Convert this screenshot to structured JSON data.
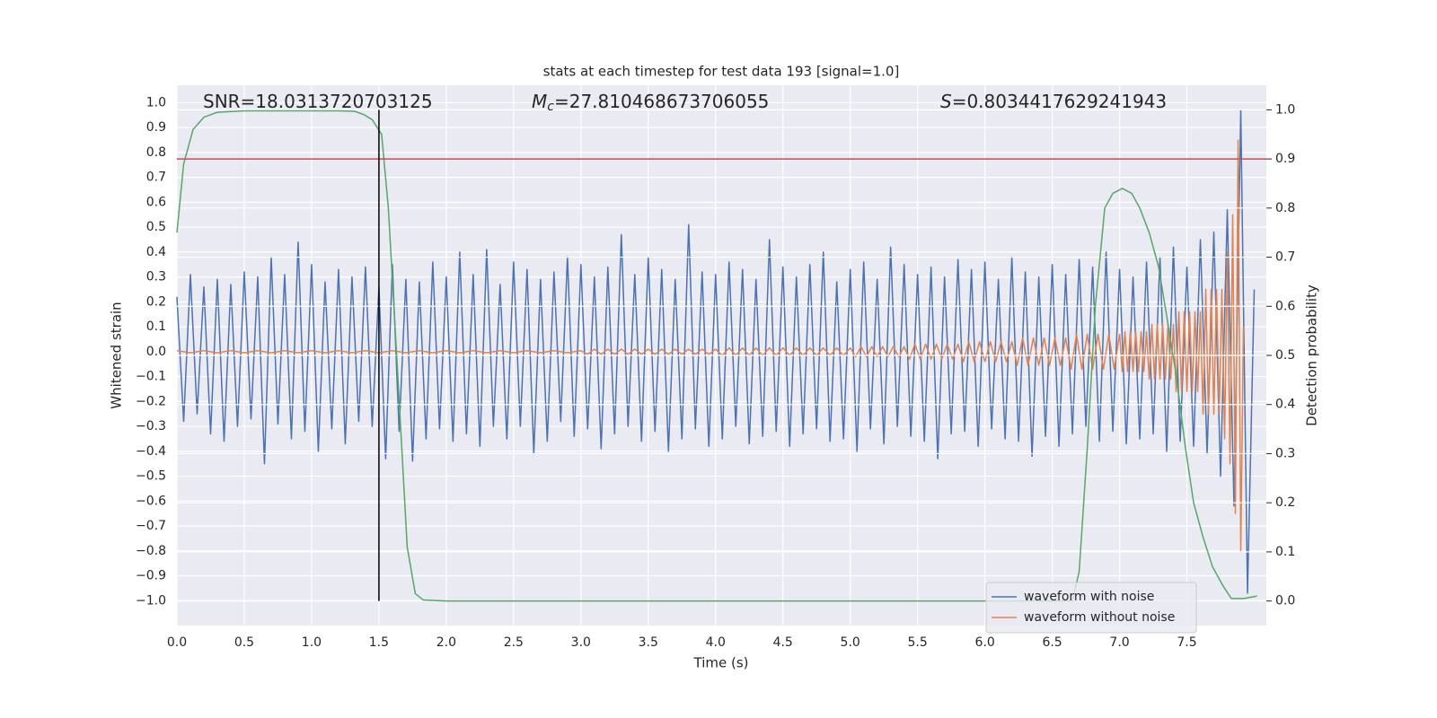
{
  "chart_data": {
    "type": "line",
    "title": "stats at each timestep for test data 193 [signal=1.0]",
    "xlabel": "Time (s)",
    "ylabel": "Whitened strain",
    "y2label": "Detection probability",
    "annotations": [
      {
        "text": "SNR=18.0313720703125"
      },
      {
        "symbol": "M",
        "subscript": "c",
        "text": "=27.810468673706055"
      },
      {
        "symbol": "S",
        "text": "=0.8034417629241943"
      }
    ],
    "xlim": [
      0,
      8.09
    ],
    "ylim": [
      -1.1,
      1.07
    ],
    "y2lim": [
      -0.05,
      1.05
    ],
    "xticks": [
      {
        "value": 0,
        "label": "0.0"
      },
      {
        "value": 0.5,
        "label": "0.5"
      },
      {
        "value": 1,
        "label": "1.0"
      },
      {
        "value": 1.5,
        "label": "1.5"
      },
      {
        "value": 2,
        "label": "2.0"
      },
      {
        "value": 2.5,
        "label": "2.5"
      },
      {
        "value": 3,
        "label": "3.0"
      },
      {
        "value": 3.5,
        "label": "3.5"
      },
      {
        "value": 4,
        "label": "4.0"
      },
      {
        "value": 4.5,
        "label": "4.5"
      },
      {
        "value": 5,
        "label": "5.0"
      },
      {
        "value": 5.5,
        "label": "5.5"
      },
      {
        "value": 6,
        "label": "6.0"
      },
      {
        "value": 6.5,
        "label": "6.5"
      },
      {
        "value": 7,
        "label": "7.0"
      },
      {
        "value": 7.5,
        "label": "7.5"
      }
    ],
    "yticks": [
      {
        "value": -1,
        "label": "−1.0"
      },
      {
        "value": -0.9,
        "label": "−0.9"
      },
      {
        "value": -0.8,
        "label": "−0.8"
      },
      {
        "value": -0.7,
        "label": "−0.7"
      },
      {
        "value": -0.6,
        "label": "−0.6"
      },
      {
        "value": -0.5,
        "label": "−0.5"
      },
      {
        "value": -0.4,
        "label": "−0.4"
      },
      {
        "value": -0.3,
        "label": "−0.3"
      },
      {
        "value": -0.2,
        "label": "−0.2"
      },
      {
        "value": -0.1,
        "label": "−0.1"
      },
      {
        "value": 0,
        "label": "0.0"
      },
      {
        "value": 0.1,
        "label": "0.1"
      },
      {
        "value": 0.2,
        "label": "0.2"
      },
      {
        "value": 0.3,
        "label": "0.3"
      },
      {
        "value": 0.4,
        "label": "0.4"
      },
      {
        "value": 0.5,
        "label": "0.5"
      },
      {
        "value": 0.6,
        "label": "0.6"
      },
      {
        "value": 0.7,
        "label": "0.7"
      },
      {
        "value": 0.8,
        "label": "0.8"
      },
      {
        "value": 0.9,
        "label": "0.9"
      },
      {
        "value": 1,
        "label": "1.0"
      }
    ],
    "y2ticks": [
      {
        "value": 0,
        "label": "0.0"
      },
      {
        "value": 0.1,
        "label": "0.1"
      },
      {
        "value": 0.2,
        "label": "0.2"
      },
      {
        "value": 0.3,
        "label": "0.3"
      },
      {
        "value": 0.4,
        "label": "0.4"
      },
      {
        "value": 0.5,
        "label": "0.5"
      },
      {
        "value": 0.6,
        "label": "0.6"
      },
      {
        "value": 0.7,
        "label": "0.7"
      },
      {
        "value": 0.8,
        "label": "0.8"
      },
      {
        "value": 0.9,
        "label": "0.9"
      },
      {
        "value": 1,
        "label": "1.0"
      }
    ],
    "grid": true,
    "legend": "lower right",
    "series": [
      {
        "name": "waveform with noise",
        "color": "#4c72b0",
        "x": [
          0,
          0.05,
          0.1,
          0.15,
          0.2,
          0.25,
          0.3,
          0.35,
          0.4,
          0.45,
          0.5,
          0.55,
          0.6,
          0.65,
          0.7,
          0.75,
          0.8,
          0.85,
          0.9,
          0.95,
          1,
          1.05,
          1.1,
          1.15,
          1.2,
          1.25,
          1.3,
          1.35,
          1.4,
          1.45,
          1.5,
          1.55,
          1.6,
          1.65,
          1.7,
          1.75,
          1.8,
          1.85,
          1.9,
          1.95,
          2,
          2.05,
          2.1,
          2.15,
          2.2,
          2.25,
          2.3,
          2.35,
          2.4,
          2.45,
          2.5,
          2.55,
          2.6,
          2.65,
          2.7,
          2.75,
          2.8,
          2.85,
          2.9,
          2.95,
          3,
          3.05,
          3.1,
          3.15,
          3.2,
          3.25,
          3.3,
          3.35,
          3.4,
          3.45,
          3.5,
          3.55,
          3.6,
          3.65,
          3.7,
          3.75,
          3.8,
          3.85,
          3.9,
          3.95,
          4,
          4.05,
          4.1,
          4.15,
          4.2,
          4.25,
          4.3,
          4.35,
          4.4,
          4.45,
          4.5,
          4.55,
          4.6,
          4.65,
          4.7,
          4.75,
          4.8,
          4.85,
          4.9,
          4.95,
          5,
          5.05,
          5.1,
          5.15,
          5.2,
          5.25,
          5.3,
          5.35,
          5.4,
          5.45,
          5.5,
          5.55,
          5.6,
          5.65,
          5.7,
          5.75,
          5.8,
          5.85,
          5.9,
          5.95,
          6,
          6.05,
          6.1,
          6.15,
          6.2,
          6.25,
          6.3,
          6.35,
          6.4,
          6.45,
          6.5,
          6.55,
          6.6,
          6.65,
          6.7,
          6.75,
          6.8,
          6.85,
          6.9,
          6.95,
          7,
          7.05,
          7.1,
          7.15,
          7.2,
          7.25,
          7.3,
          7.35,
          7.4,
          7.45,
          7.5,
          7.55,
          7.6,
          7.65,
          7.7,
          7.75,
          7.8,
          7.85,
          7.9,
          7.95,
          8
        ],
        "values": [
          0.22,
          -0.28,
          0.31,
          -0.25,
          0.26,
          -0.33,
          0.29,
          -0.36,
          0.27,
          -0.3,
          0.32,
          -0.27,
          0.3,
          -0.45,
          0.38,
          -0.29,
          0.31,
          -0.35,
          0.44,
          -0.32,
          0.35,
          -0.4,
          0.28,
          -0.31,
          0.33,
          -0.37,
          0.3,
          -0.28,
          0.34,
          -0.3,
          0.26,
          -0.43,
          0.35,
          -0.32,
          0.29,
          -0.44,
          0.28,
          -0.35,
          0.36,
          -0.31,
          0.3,
          -0.36,
          0.4,
          -0.33,
          0.31,
          -0.38,
          0.41,
          -0.3,
          0.27,
          -0.35,
          0.36,
          -0.3,
          0.33,
          -0.41,
          0.29,
          -0.36,
          0.32,
          -0.28,
          0.38,
          -0.34,
          0.35,
          -0.31,
          0.3,
          -0.39,
          0.34,
          -0.33,
          0.47,
          -0.3,
          0.31,
          -0.36,
          0.38,
          -0.32,
          0.33,
          -0.4,
          0.29,
          -0.35,
          0.51,
          -0.31,
          0.32,
          -0.38,
          0.31,
          -0.35,
          0.36,
          -0.3,
          0.33,
          -0.37,
          0.29,
          -0.34,
          0.45,
          -0.32,
          0.34,
          -0.38,
          0.3,
          -0.33,
          0.35,
          -0.31,
          0.4,
          -0.36,
          0.28,
          -0.35,
          0.33,
          -0.4,
          0.36,
          -0.31,
          0.29,
          -0.37,
          0.42,
          -0.3,
          0.35,
          -0.34,
          0.31,
          -0.36,
          0.34,
          -0.43,
          0.3,
          -0.33,
          0.37,
          -0.32,
          0.33,
          -0.38,
          0.36,
          -0.31,
          0.29,
          -0.35,
          0.38,
          -0.36,
          0.32,
          -0.42,
          0.3,
          -0.34,
          0.35,
          -0.38,
          0.31,
          -0.33,
          0.37,
          -0.3,
          0.34,
          -0.36,
          0.4,
          -0.32,
          0.33,
          -0.37,
          0.3,
          -0.35,
          0.36,
          -0.33,
          0.38,
          -0.4,
          0.42,
          -0.36,
          0.34,
          -0.38,
          0.45,
          -0.41,
          0.48,
          -0.5,
          0.57,
          -0.62,
          0.97,
          -0.97,
          0.25
        ]
      },
      {
        "name": "waveform without noise",
        "color": "#dd8452",
        "x": [
          0,
          0.1,
          0.2,
          0.3,
          0.4,
          0.5,
          0.6,
          0.7,
          0.8,
          0.9,
          1,
          1.1,
          1.2,
          1.3,
          1.4,
          1.5,
          1.6,
          1.7,
          1.8,
          1.9,
          2,
          2.1,
          2.2,
          2.3,
          2.4,
          2.5,
          2.6,
          2.7,
          2.8,
          2.9,
          3,
          3.05,
          3.1,
          3.15,
          3.2,
          3.25,
          3.3,
          3.35,
          3.4,
          3.45,
          3.5,
          3.55,
          3.6,
          3.65,
          3.7,
          3.75,
          3.8,
          3.85,
          3.9,
          3.95,
          4,
          4.05,
          4.1,
          4.15,
          4.2,
          4.25,
          4.3,
          4.35,
          4.4,
          4.45,
          4.5,
          4.55,
          4.6,
          4.65,
          4.7,
          4.75,
          4.8,
          4.85,
          4.9,
          4.95,
          5,
          5.04,
          5.08,
          5.12,
          5.16,
          5.2,
          5.24,
          5.28,
          5.32,
          5.36,
          5.4,
          5.44,
          5.48,
          5.52,
          5.56,
          5.6,
          5.64,
          5.68,
          5.72,
          5.76,
          5.8,
          5.84,
          5.88,
          5.92,
          5.96,
          6,
          6.04,
          6.08,
          6.12,
          6.16,
          6.2,
          6.24,
          6.28,
          6.32,
          6.36,
          6.4,
          6.44,
          6.48,
          6.52,
          6.56,
          6.6,
          6.64,
          6.68,
          6.72,
          6.76,
          6.8,
          6.84,
          6.88,
          6.92,
          6.96,
          7,
          7.02,
          7.04,
          7.06,
          7.08,
          7.1,
          7.12,
          7.14,
          7.16,
          7.18,
          7.2,
          7.22,
          7.24,
          7.26,
          7.28,
          7.3,
          7.32,
          7.34,
          7.36,
          7.38,
          7.4,
          7.42,
          7.44,
          7.46,
          7.48,
          7.5,
          7.52,
          7.54,
          7.56,
          7.58,
          7.6,
          7.62,
          7.64,
          7.66,
          7.68,
          7.7,
          7.72,
          7.74,
          7.76,
          7.78,
          7.8,
          7.82,
          7.84,
          7.86,
          7.88,
          7.9,
          7.92
        ],
        "values": [
          0.004,
          -0.004,
          0.004,
          -0.004,
          0.004,
          -0.004,
          0.004,
          -0.004,
          0.004,
          -0.004,
          0.004,
          -0.004,
          0.004,
          -0.004,
          0.004,
          -0.004,
          0.004,
          -0.004,
          0.004,
          -0.004,
          0.004,
          -0.004,
          0.004,
          -0.004,
          0.004,
          -0.004,
          0.004,
          -0.004,
          0.004,
          -0.004,
          0.004,
          -0.01,
          0.01,
          -0.01,
          0.01,
          -0.01,
          0.01,
          -0.01,
          0.01,
          -0.01,
          0.01,
          -0.01,
          0.01,
          -0.01,
          0.01,
          -0.01,
          0.01,
          -0.01,
          0.01,
          -0.01,
          0.01,
          -0.015,
          0.015,
          -0.015,
          0.015,
          -0.015,
          0.015,
          -0.015,
          0.015,
          -0.015,
          0.015,
          -0.015,
          0.015,
          -0.015,
          0.015,
          -0.015,
          0.015,
          -0.015,
          0.015,
          -0.015,
          0.015,
          -0.02,
          0.02,
          -0.02,
          0.02,
          -0.02,
          0.02,
          -0.02,
          0.02,
          -0.02,
          0.02,
          -0.03,
          0.03,
          -0.03,
          0.03,
          -0.03,
          0.03,
          -0.03,
          0.03,
          -0.03,
          0.03,
          -0.04,
          0.04,
          -0.04,
          0.04,
          -0.04,
          0.04,
          -0.04,
          0.04,
          -0.04,
          0.04,
          -0.055,
          0.055,
          -0.055,
          0.055,
          -0.055,
          0.055,
          -0.055,
          0.055,
          -0.055,
          0.055,
          -0.07,
          0.07,
          -0.07,
          0.07,
          -0.07,
          0.07,
          -0.07,
          0.07,
          -0.07,
          0.07,
          -0.08,
          0.08,
          -0.08,
          0.08,
          -0.08,
          0.08,
          -0.08,
          0.08,
          -0.08,
          0.08,
          -0.11,
          0.11,
          -0.11,
          0.11,
          -0.11,
          0.11,
          -0.11,
          0.11,
          -0.11,
          0.11,
          -0.16,
          0.16,
          -0.16,
          0.16,
          -0.16,
          0.16,
          -0.16,
          0.16,
          -0.16,
          0.16,
          -0.25,
          0.25,
          -0.25,
          0.25,
          -0.25,
          0.25,
          -0.25,
          0.25,
          -0.35,
          0.4,
          -0.45,
          0.55,
          -0.65,
          0.85,
          -0.8,
          0.1
        ]
      },
      {
        "axis": "y2",
        "color": "#55a868",
        "x": [
          0,
          0.05,
          0.12,
          0.2,
          0.3,
          0.5,
          0.8,
          1,
          1.2,
          1.32,
          1.39,
          1.45,
          1.52,
          1.57,
          1.64,
          1.71,
          1.77,
          1.83,
          2,
          3,
          4,
          5,
          6,
          6.65,
          6.7,
          6.76,
          6.82,
          6.89,
          6.95,
          7.02,
          7.09,
          7.15,
          7.22,
          7.29,
          7.35,
          7.42,
          7.49,
          7.55,
          7.62,
          7.69,
          7.77,
          7.83,
          7.92,
          8.02
        ],
        "values": [
          0.75,
          0.89,
          0.96,
          0.985,
          0.995,
          0.998,
          0.998,
          0.998,
          0.998,
          0.997,
          0.99,
          0.98,
          0.95,
          0.8,
          0.46,
          0.11,
          0.015,
          0.002,
          0,
          0,
          0,
          0,
          0,
          0,
          0.06,
          0.31,
          0.6,
          0.8,
          0.83,
          0.84,
          0.83,
          0.8,
          0.75,
          0.68,
          0.58,
          0.46,
          0.31,
          0.2,
          0.13,
          0.07,
          0.03,
          0.005,
          0.005,
          0.01
        ]
      }
    ],
    "hline": {
      "y": 0.9,
      "axis": "y2",
      "color": "#c44e52"
    },
    "vline": {
      "x": 1.5,
      "ymin": 0,
      "ymax": 1,
      "axis": "y2",
      "color": "#000000"
    }
  }
}
